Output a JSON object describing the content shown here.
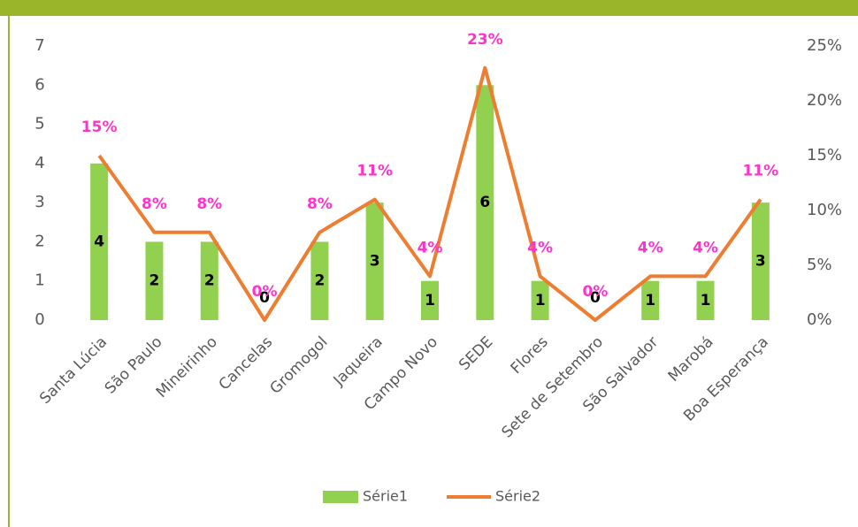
{
  "chart_data": {
    "type": "bar",
    "categories": [
      "Santa Lúcia",
      "São Paulo",
      "Mineirinho",
      "Cancelas",
      "Gromogol",
      "Jaqueira",
      "Campo Novo",
      "SEDE",
      "Flores",
      "Sete de Setembro",
      "São Salvador",
      "Marobá",
      "Boa Esperança"
    ],
    "series": [
      {
        "name": "Série1",
        "type": "bar",
        "color": "#92d050",
        "values": [
          4,
          2,
          2,
          0,
          2,
          3,
          1,
          6,
          1,
          0,
          1,
          1,
          3
        ]
      },
      {
        "name": "Série2",
        "type": "line",
        "axis": "y2",
        "color": "#ed7d31",
        "values": [
          15,
          8,
          8,
          0,
          8,
          11,
          4,
          23,
          4,
          0,
          4,
          4,
          11
        ],
        "value_labels": [
          "15%",
          "8%",
          "8%",
          "0%",
          "8%",
          "11%",
          "4%",
          "23%",
          "4%",
          "0%",
          "4%",
          "4%",
          "11%"
        ]
      }
    ],
    "ylim": [
      0,
      7
    ],
    "yticks": [
      0,
      1,
      2,
      3,
      4,
      5,
      6,
      7
    ],
    "y2lim": [
      0,
      25
    ],
    "y2ticks": [
      {
        "value": 0,
        "label": "0%"
      },
      {
        "value": 5,
        "label": "5%"
      },
      {
        "value": 10,
        "label": "10%"
      },
      {
        "value": 15,
        "label": "15%"
      },
      {
        "value": 20,
        "label": "20%"
      },
      {
        "value": 25,
        "label": "25%"
      }
    ],
    "legend": "bottom"
  }
}
